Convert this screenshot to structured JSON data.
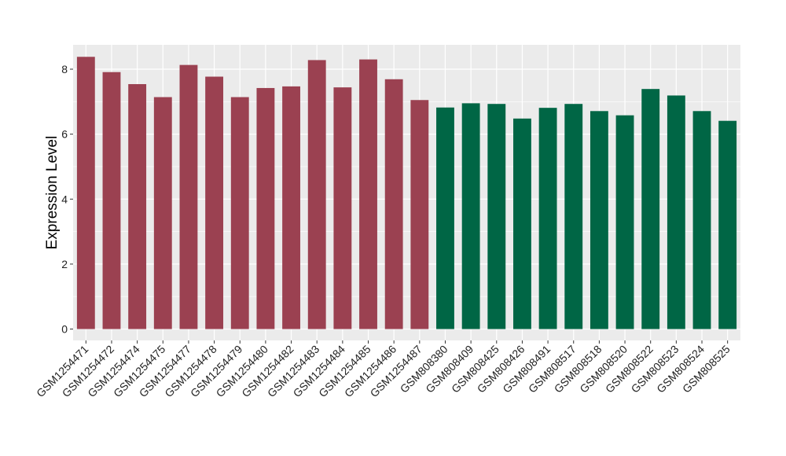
{
  "chart_data": {
    "type": "bar",
    "title": "",
    "xlabel": "",
    "ylabel": "Expression Level",
    "ylim": [
      -0.35,
      8.75
    ],
    "yticks": [
      0,
      2,
      4,
      6,
      8
    ],
    "grid": true,
    "legend": "none",
    "colors": {
      "panel_background": "#EBEBEB",
      "grid": "#FFFFFF",
      "group_1": "#9B4151",
      "group_2": "#006645"
    },
    "categories": [
      "GSM1254471",
      "GSM1254472",
      "GSM1254474",
      "GSM1254475",
      "GSM1254477",
      "GSM1254478",
      "GSM1254479",
      "GSM1254480",
      "GSM1254482",
      "GSM1254483",
      "GSM1254484",
      "GSM1254485",
      "GSM1254486",
      "GSM1254487",
      "GSM808380",
      "GSM808409",
      "GSM808425",
      "GSM808426",
      "GSM808491",
      "GSM808517",
      "GSM808518",
      "GSM808520",
      "GSM808522",
      "GSM808523",
      "GSM808524",
      "GSM808525"
    ],
    "values": [
      8.38,
      7.91,
      7.54,
      7.14,
      8.13,
      7.77,
      7.14,
      7.42,
      7.47,
      8.28,
      7.44,
      8.3,
      7.69,
      7.05,
      6.82,
      6.95,
      6.93,
      6.48,
      6.81,
      6.93,
      6.71,
      6.58,
      7.39,
      7.19,
      6.71,
      6.41
    ],
    "bar_colors": [
      "#9B4151",
      "#9B4151",
      "#9B4151",
      "#9B4151",
      "#9B4151",
      "#9B4151",
      "#9B4151",
      "#9B4151",
      "#9B4151",
      "#9B4151",
      "#9B4151",
      "#9B4151",
      "#9B4151",
      "#9B4151",
      "#006645",
      "#006645",
      "#006645",
      "#006645",
      "#006645",
      "#006645",
      "#006645",
      "#006645",
      "#006645",
      "#006645",
      "#006645",
      "#006645"
    ]
  }
}
